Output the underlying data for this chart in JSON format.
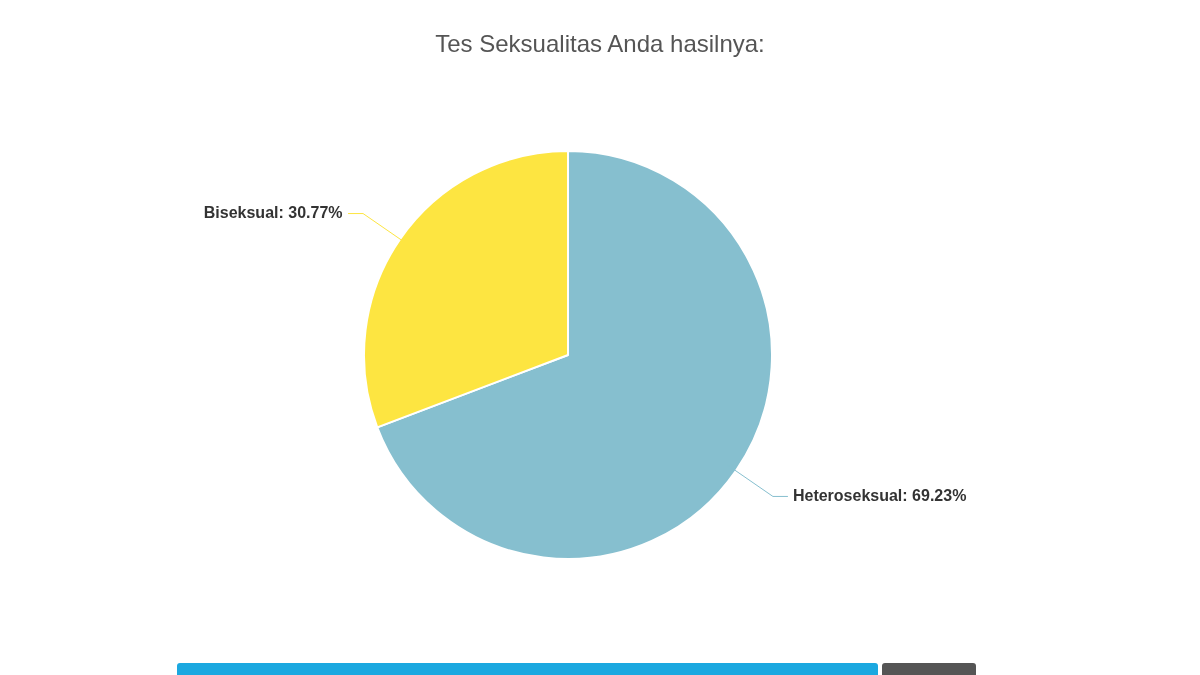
{
  "chart_data": {
    "type": "pie",
    "title": "Tes Seksualitas Anda hasilnya:",
    "categories": [
      "Heteroseksual",
      "Biseksual"
    ],
    "values": [
      69.23,
      30.77
    ],
    "value_labels": [
      "69.23%",
      "30.77%"
    ],
    "colors": [
      "#86bfcf",
      "#fde541"
    ],
    "legend": false
  }
}
